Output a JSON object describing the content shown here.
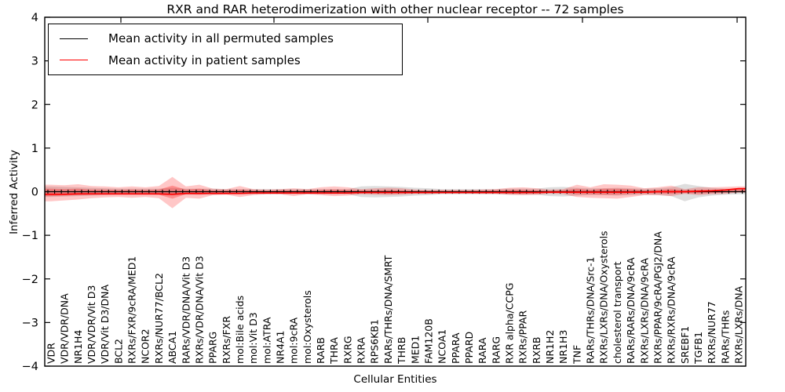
{
  "chart_data": {
    "type": "line",
    "title": "RXR and RAR heterodimerization with other nuclear receptor -- 72 samples",
    "xlabel": "Cellular Entities",
    "ylabel": "Inferred Activity",
    "ylim": [
      -4,
      4
    ],
    "yticks": [
      4,
      3,
      2,
      1,
      0,
      -1,
      -2,
      -3,
      -4
    ],
    "grid": false,
    "legend_position": "upper left",
    "legend": [
      {
        "label": "Mean activity in all permuted samples",
        "color": "#000000"
      },
      {
        "label": "Mean activity in patient samples",
        "color": "#ff0000"
      }
    ],
    "categories": [
      "VDR",
      "VDR/VDR/DNA",
      "NR1H4",
      "VDR/VDR/Vit D3",
      "VDR/Vit D3/DNA",
      "BCL2",
      "RXRs/FXR/9cRA/MED1",
      "NCOR2",
      "RXRs/NUR77/BCL2",
      "ABCA1",
      "RARs/VDR/DNA/Vit D3",
      "RXRs/VDR/DNA/Vit D3",
      "PPARG",
      "RXRs/FXR",
      "mol:Bile acids",
      "mol:Vit D3",
      "mol:ATRA",
      "NR4A1",
      "mol:9cRA",
      "mol:Oxysterols",
      "RARB",
      "THRA",
      "RXRG",
      "RXRA",
      "RPS6KB1",
      "RARs/THRs/DNA/SMRT",
      "THRB",
      "MED1",
      "FAM120B",
      "NCOA1",
      "PPARA",
      "PPARD",
      "RARA",
      "RARG",
      "RXR alpha/CCPG",
      "RXRs/PPAR",
      "RXRB",
      "NR1H2",
      "NR1H3",
      "TNF",
      "RARs/THRs/DNA/Src-1",
      "RXRs/LXRs/DNA/Oxysterols",
      "cholesterol transport",
      "RARs/RARs/DNA/9cRA",
      "RXRs/LXRs/DNA/9cRA",
      "RXRs/PPAR/9cRA/PGJ2/DNA",
      "RXRs/RXRs/DNA/9cRA",
      "SREBF1",
      "TGFB1",
      "RXRs/NUR77",
      "RARs/THRs",
      "RXRs/LXRs/DNA"
    ],
    "series": [
      {
        "name": "Mean activity in all permuted samples",
        "color": "#000000",
        "values": [
          0,
          0,
          0,
          0,
          0,
          0,
          0,
          0,
          0,
          0,
          0,
          0,
          0,
          0,
          0,
          0,
          0,
          0,
          0,
          0,
          0,
          0,
          0,
          0,
          0,
          0,
          0,
          0,
          0,
          0,
          0,
          0,
          0,
          0,
          0,
          0,
          0,
          0,
          0,
          0,
          0,
          0,
          0,
          0,
          0,
          0,
          0,
          0,
          0,
          0,
          0,
          0
        ]
      },
      {
        "name": "Mean activity in patient samples",
        "color": "#ff0000",
        "values": [
          -0.06,
          -0.06,
          -0.05,
          -0.05,
          -0.05,
          -0.05,
          -0.05,
          -0.05,
          -0.05,
          -0.06,
          -0.04,
          -0.04,
          -0.04,
          -0.04,
          -0.04,
          -0.03,
          -0.03,
          -0.03,
          -0.03,
          -0.03,
          -0.03,
          -0.03,
          -0.03,
          -0.02,
          -0.02,
          -0.02,
          -0.02,
          -0.02,
          -0.02,
          -0.02,
          -0.02,
          -0.02,
          -0.02,
          -0.02,
          -0.02,
          -0.02,
          -0.02,
          -0.01,
          -0.01,
          -0.01,
          -0.01,
          -0.01,
          -0.01,
          -0.01,
          -0.01,
          0,
          0,
          0,
          0.01,
          0.02,
          0.04,
          0.07
        ]
      }
    ],
    "bands": [
      {
        "name": "permuted-samples-range",
        "color": "#999999",
        "alpha": 0.32,
        "upper": [
          0.12,
          0.11,
          0.1,
          0.09,
          0.08,
          0.07,
          0.07,
          0.07,
          0.07,
          0.09,
          0.07,
          0.07,
          0.07,
          0.06,
          0.06,
          0.06,
          0.06,
          0.06,
          0.06,
          0.06,
          0.06,
          0.06,
          0.06,
          0.12,
          0.13,
          0.12,
          0.11,
          0.09,
          0.08,
          0.06,
          0.06,
          0.06,
          0.06,
          0.06,
          0.07,
          0.07,
          0.07,
          0.1,
          0.11,
          0.09,
          0.08,
          0.08,
          0.09,
          0.08,
          0.07,
          0.08,
          0.1,
          0.18,
          0.13,
          0.09,
          0.07,
          0.06
        ],
        "lower": [
          -0.12,
          -0.11,
          -0.1,
          -0.09,
          -0.08,
          -0.07,
          -0.07,
          -0.07,
          -0.07,
          -0.09,
          -0.07,
          -0.07,
          -0.07,
          -0.06,
          -0.06,
          -0.06,
          -0.06,
          -0.06,
          -0.06,
          -0.06,
          -0.06,
          -0.06,
          -0.06,
          -0.12,
          -0.13,
          -0.12,
          -0.11,
          -0.09,
          -0.08,
          -0.06,
          -0.06,
          -0.06,
          -0.06,
          -0.06,
          -0.07,
          -0.07,
          -0.07,
          -0.1,
          -0.11,
          -0.09,
          -0.08,
          -0.08,
          -0.09,
          -0.08,
          -0.07,
          -0.08,
          -0.1,
          -0.22,
          -0.13,
          -0.09,
          -0.07,
          -0.06
        ]
      },
      {
        "name": "patient-samples-outer-band",
        "color": "#ff0000",
        "alpha": 0.22,
        "upper": [
          0.16,
          0.15,
          0.17,
          0.13,
          0.12,
          0.1,
          0.12,
          0.1,
          0.13,
          0.34,
          0.12,
          0.16,
          0.07,
          0.06,
          0.13,
          0.06,
          0.05,
          0.06,
          0.08,
          0.06,
          0.1,
          0.12,
          0.1,
          0.06,
          0.08,
          0.09,
          0.08,
          0.05,
          0.04,
          0.04,
          0.04,
          0.04,
          0.05,
          0.06,
          0.09,
          0.1,
          0.08,
          0.05,
          0.06,
          0.16,
          0.1,
          0.17,
          0.16,
          0.14,
          0.08,
          0.1,
          0.14,
          0.06,
          0.1,
          0.1,
          0.11,
          0.12
        ],
        "lower": [
          -0.22,
          -0.2,
          -0.18,
          -0.15,
          -0.13,
          -0.12,
          -0.14,
          -0.12,
          -0.15,
          -0.38,
          -0.14,
          -0.16,
          -0.08,
          -0.07,
          -0.12,
          -0.08,
          -0.06,
          -0.06,
          -0.1,
          -0.06,
          -0.08,
          -0.1,
          -0.09,
          -0.06,
          -0.07,
          -0.08,
          -0.07,
          -0.05,
          -0.05,
          -0.04,
          -0.04,
          -0.04,
          -0.05,
          -0.05,
          -0.07,
          -0.08,
          -0.07,
          -0.05,
          -0.06,
          -0.12,
          -0.14,
          -0.15,
          -0.16,
          -0.12,
          -0.08,
          -0.08,
          -0.1,
          -0.05,
          -0.08,
          -0.06,
          -0.05,
          -0.02
        ]
      },
      {
        "name": "patient-samples-inner-band",
        "color": "#ff0000",
        "alpha": 0.28,
        "upper": [
          0.07,
          0.06,
          0.07,
          0.05,
          0.05,
          0.04,
          0.05,
          0.04,
          0.05,
          0.14,
          0.05,
          0.07,
          0.03,
          0.03,
          0.05,
          0.03,
          0.02,
          0.03,
          0.03,
          0.03,
          0.04,
          0.05,
          0.04,
          0.03,
          0.03,
          0.04,
          0.03,
          0.02,
          0.02,
          0.02,
          0.02,
          0.02,
          0.02,
          0.03,
          0.04,
          0.04,
          0.03,
          0.02,
          0.03,
          0.07,
          0.04,
          0.07,
          0.07,
          0.06,
          0.03,
          0.04,
          0.06,
          0.03,
          0.04,
          0.04,
          0.05,
          0.05
        ],
        "lower": [
          -0.1,
          -0.09,
          -0.08,
          -0.07,
          -0.06,
          -0.06,
          -0.06,
          -0.06,
          -0.07,
          -0.16,
          -0.06,
          -0.07,
          -0.04,
          -0.04,
          -0.05,
          -0.04,
          -0.03,
          -0.03,
          -0.04,
          -0.03,
          -0.04,
          -0.05,
          -0.04,
          -0.03,
          -0.03,
          -0.04,
          -0.03,
          -0.03,
          -0.03,
          -0.02,
          -0.02,
          -0.02,
          -0.03,
          -0.03,
          -0.04,
          -0.04,
          -0.03,
          -0.03,
          -0.03,
          -0.06,
          -0.06,
          -0.07,
          -0.07,
          -0.05,
          -0.04,
          -0.04,
          -0.05,
          -0.03,
          -0.04,
          -0.03,
          -0.02,
          -0.01
        ]
      }
    ]
  }
}
